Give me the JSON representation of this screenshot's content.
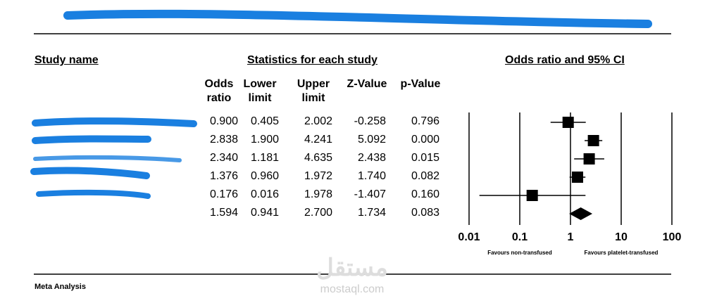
{
  "chart_data": {
    "type": "forest",
    "header_left": "Study name",
    "header_mid": "Statistics for each study",
    "header_right": "Odds ratio and 95% CI",
    "columns": [
      "Odds ratio",
      "Lower limit",
      "Upper limit",
      "Z-Value",
      "p-Value"
    ],
    "rows": [
      {
        "name": null,
        "values": [
          0.9,
          0.405,
          2.002,
          -0.258,
          0.796
        ],
        "value_labels": [
          "0.900",
          "0.405",
          "2.002",
          "-0.258",
          "0.796"
        ]
      },
      {
        "name": null,
        "values": [
          2.838,
          1.9,
          4.241,
          5.092,
          0
        ],
        "value_labels": [
          "2.838",
          "1.900",
          "4.241",
          "5.092",
          "0.000"
        ]
      },
      {
        "name": null,
        "values": [
          2.34,
          1.181,
          4.635,
          2.438,
          0.015
        ],
        "value_labels": [
          "2.340",
          "1.181",
          "4.635",
          "2.438",
          "0.015"
        ]
      },
      {
        "name": null,
        "values": [
          1.376,
          0.96,
          1.972,
          1.74,
          0.082
        ],
        "value_labels": [
          "1.376",
          "0.960",
          "1.972",
          "1.740",
          "0.082"
        ]
      },
      {
        "name": null,
        "values": [
          0.176,
          0.016,
          1.978,
          -1.407,
          0.16
        ],
        "value_labels": [
          "0.176",
          "0.016",
          "1.978",
          "-1.407",
          "0.160"
        ]
      }
    ],
    "summary": {
      "values": [
        1.594,
        0.941,
        2.7,
        1.734,
        0.083
      ],
      "value_labels": [
        "1.594",
        "0.941",
        "2.700",
        "1.734",
        "0.083"
      ]
    },
    "xscale": "log",
    "xlim": [
      0.01,
      100
    ],
    "xticks": [
      0.01,
      0.1,
      1,
      10,
      100
    ],
    "xlabel_left": "Favours non-transfused",
    "xlabel_right": "Favours platelet-transfused",
    "footer": "Meta Analysis",
    "watermark": [
      "مستقل",
      "mostaql.com"
    ]
  }
}
